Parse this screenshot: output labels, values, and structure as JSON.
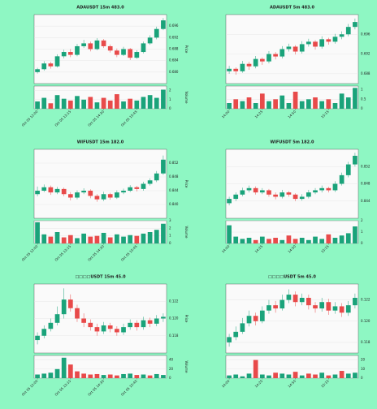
{
  "chart_data": [
    {
      "type": "candlestick",
      "title": "ADAUSDT 15m 483.0",
      "ylabel": "Price",
      "y2label": "Volume",
      "up_color": "#1aa37a",
      "down_color": "#e84a4a",
      "grid": true,
      "categories": [
        "Oct 05 12:00",
        null,
        null,
        null,
        null,
        "Oct 05 13:15",
        null,
        null,
        null,
        null,
        "Oct 05 14:30",
        null,
        null,
        null,
        null,
        "Oct 05 15:45",
        null,
        null,
        null,
        null
      ],
      "ohlc": [
        [
          0.68,
          0.6815,
          0.6795,
          0.681
        ],
        [
          0.681,
          0.6838,
          0.6805,
          0.683
        ],
        [
          0.683,
          0.6836,
          0.6812,
          0.682
        ],
        [
          0.682,
          0.6862,
          0.6816,
          0.6855
        ],
        [
          0.6855,
          0.6878,
          0.6848,
          0.687
        ],
        [
          0.687,
          0.688,
          0.6852,
          0.686
        ],
        [
          0.686,
          0.6898,
          0.6855,
          0.689
        ],
        [
          0.689,
          0.6912,
          0.6884,
          0.69
        ],
        [
          0.69,
          0.6906,
          0.6872,
          0.688
        ],
        [
          0.688,
          0.6918,
          0.6876,
          0.691
        ],
        [
          0.691,
          0.6915,
          0.6884,
          0.689
        ],
        [
          0.689,
          0.6896,
          0.6868,
          0.6875
        ],
        [
          0.6875,
          0.6882,
          0.6852,
          0.686
        ],
        [
          0.686,
          0.6888,
          0.6856,
          0.688
        ],
        [
          0.688,
          0.6884,
          0.6842,
          0.685
        ],
        [
          0.685,
          0.6876,
          0.6846,
          0.687
        ],
        [
          0.687,
          0.6906,
          0.6865,
          0.69
        ],
        [
          0.69,
          0.6928,
          0.6895,
          0.692
        ],
        [
          0.692,
          0.6958,
          0.6914,
          0.695
        ],
        [
          0.695,
          0.6988,
          0.6946,
          0.698
        ]
      ],
      "volume": [
        0.8,
        1.2,
        0.6,
        1.5,
        1.1,
        0.9,
        1.4,
        1.0,
        1.3,
        0.7,
        1.2,
        0.9,
        1.6,
        0.8,
        1.1,
        0.9,
        1.3,
        1.5,
        1.2,
        2.1
      ],
      "ylim": [
        0.676,
        0.7
      ],
      "yticks": [
        {
          "value": 0.68,
          "label": "0.680"
        },
        0.684,
        0.688,
        0.692,
        0.696
      ],
      "y2lim": [
        0,
        2.5
      ],
      "y2ticks": [
        0,
        1,
        2
      ]
    },
    {
      "type": "candlestick",
      "title": "ADAUSDT 5m 483.0",
      "ylabel": "Price",
      "y2label": "Volume",
      "up_color": "#1aa37a",
      "down_color": "#e84a4a",
      "grid": true,
      "categories": [
        "14:00",
        null,
        null,
        null,
        null,
        "14:25",
        null,
        null,
        null,
        null,
        "14:50",
        null,
        null,
        null,
        null,
        "15:15",
        null,
        null,
        null,
        null
      ],
      "ohlc": [
        [
          0.6885,
          0.6896,
          0.688,
          0.689
        ],
        [
          0.689,
          0.6893,
          0.6878,
          0.6885
        ],
        [
          0.6885,
          0.6906,
          0.6882,
          0.69
        ],
        [
          0.69,
          0.6904,
          0.6888,
          0.6895
        ],
        [
          0.6895,
          0.6916,
          0.6891,
          0.691
        ],
        [
          0.691,
          0.6913,
          0.6898,
          0.6905
        ],
        [
          0.6905,
          0.6926,
          0.6901,
          0.692
        ],
        [
          0.692,
          0.6924,
          0.6909,
          0.6915
        ],
        [
          0.6915,
          0.6936,
          0.6911,
          0.693
        ],
        [
          0.693,
          0.6941,
          0.6925,
          0.6935
        ],
        [
          0.6935,
          0.6938,
          0.6919,
          0.6925
        ],
        [
          0.6925,
          0.6946,
          0.6921,
          0.694
        ],
        [
          0.694,
          0.6951,
          0.6935,
          0.6945
        ],
        [
          0.6945,
          0.6948,
          0.6929,
          0.6935
        ],
        [
          0.6935,
          0.6956,
          0.6931,
          0.695
        ],
        [
          0.695,
          0.6953,
          0.6939,
          0.6945
        ],
        [
          0.6945,
          0.6961,
          0.6941,
          0.6955
        ],
        [
          0.6955,
          0.6966,
          0.695,
          0.696
        ],
        [
          0.696,
          0.6981,
          0.6956,
          0.6975
        ],
        [
          0.6975,
          0.6992,
          0.697,
          0.6985
        ]
      ],
      "volume": [
        0.3,
        0.5,
        0.4,
        0.6,
        0.3,
        0.8,
        0.4,
        0.5,
        0.7,
        0.3,
        0.9,
        0.4,
        0.5,
        0.6,
        0.4,
        0.5,
        0.3,
        0.8,
        0.6,
        1.1
      ],
      "ylim": [
        0.686,
        0.7
      ],
      "yticks": [
        0.688,
        0.692,
        0.696
      ],
      "y2lim": [
        0,
        1.2
      ],
      "y2ticks": [
        0,
        0.5,
        1
      ]
    },
    {
      "type": "candlestick",
      "title": "WIFUSDT 15m 182.0",
      "ylabel": "Price",
      "y2label": "Volume",
      "up_color": "#1aa37a",
      "down_color": "#e84a4a",
      "grid": true,
      "categories": [
        "Oct 05 12:00",
        null,
        null,
        null,
        null,
        "Oct 05 13:15",
        null,
        null,
        null,
        null,
        "Oct 05 14:30",
        null,
        null,
        null,
        null,
        "Oct 05 15:45",
        null,
        null,
        null,
        null
      ],
      "ohlc": [
        [
          0.843,
          0.8452,
          0.8424,
          0.844
        ],
        [
          0.844,
          0.8458,
          0.8436,
          0.845
        ],
        [
          0.845,
          0.8455,
          0.8428,
          0.8435
        ],
        [
          0.8435,
          0.8451,
          0.843,
          0.8445
        ],
        [
          0.8445,
          0.8449,
          0.8424,
          0.843
        ],
        [
          0.843,
          0.8436,
          0.8412,
          0.842
        ],
        [
          0.842,
          0.8441,
          0.8415,
          0.8435
        ],
        [
          0.8435,
          0.8447,
          0.843,
          0.844
        ],
        [
          0.844,
          0.8444,
          0.8418,
          0.8425
        ],
        [
          0.8425,
          0.843,
          0.8408,
          0.8415
        ],
        [
          0.8415,
          0.8437,
          0.841,
          0.843
        ],
        [
          0.843,
          0.8434,
          0.8414,
          0.842
        ],
        [
          0.842,
          0.8441,
          0.8416,
          0.8435
        ],
        [
          0.8435,
          0.8446,
          0.843,
          0.844
        ],
        [
          0.844,
          0.8456,
          0.8436,
          0.845
        ],
        [
          0.845,
          0.8454,
          0.8438,
          0.8445
        ],
        [
          0.8445,
          0.8466,
          0.844,
          0.846
        ],
        [
          0.846,
          0.8476,
          0.8455,
          0.847
        ],
        [
          0.847,
          0.8497,
          0.8465,
          0.849
        ],
        [
          0.849,
          0.8542,
          0.8486,
          0.853
        ]
      ],
      "volume": [
        2.8,
        1.2,
        0.9,
        1.5,
        0.8,
        1.1,
        0.7,
        1.3,
        0.9,
        1.0,
        1.4,
        0.8,
        1.2,
        0.9,
        1.1,
        1.0,
        1.3,
        1.5,
        1.8,
        2.6
      ],
      "ylim": [
        0.836,
        0.856
      ],
      "yticks": [
        {
          "value": 0.84,
          "label": "0.840"
        },
        0.844,
        0.848,
        0.852
      ],
      "y2lim": [
        0,
        3
      ],
      "y2ticks": [
        0,
        1,
        2,
        3
      ]
    },
    {
      "type": "candlestick",
      "title": "WIFUSDT 5m 182.0",
      "ylabel": "Price",
      "y2label": "Volume",
      "up_color": "#1aa37a",
      "down_color": "#e84a4a",
      "grid": true,
      "categories": [
        "14:00",
        null,
        null,
        null,
        null,
        "14:25",
        null,
        null,
        null,
        null,
        "14:50",
        null,
        null,
        null,
        null,
        "15:15",
        null,
        null,
        null,
        null
      ],
      "ohlc": [
        [
          0.8435,
          0.845,
          0.843,
          0.8445
        ],
        [
          0.8445,
          0.846,
          0.844,
          0.8455
        ],
        [
          0.8455,
          0.8471,
          0.8451,
          0.8465
        ],
        [
          0.8465,
          0.8476,
          0.846,
          0.847
        ],
        [
          0.847,
          0.8474,
          0.8455,
          0.846
        ],
        [
          0.846,
          0.847,
          0.8456,
          0.8465
        ],
        [
          0.8465,
          0.8468,
          0.845,
          0.8455
        ],
        [
          0.8455,
          0.846,
          0.8444,
          0.845
        ],
        [
          0.845,
          0.8466,
          0.8446,
          0.846
        ],
        [
          0.846,
          0.8463,
          0.845,
          0.8455
        ],
        [
          0.8455,
          0.8458,
          0.844,
          0.8445
        ],
        [
          0.8445,
          0.8456,
          0.8441,
          0.845
        ],
        [
          0.845,
          0.8466,
          0.8446,
          0.846
        ],
        [
          0.846,
          0.847,
          0.8456,
          0.8465
        ],
        [
          0.8465,
          0.8476,
          0.846,
          0.847
        ],
        [
          0.847,
          0.8473,
          0.846,
          0.8465
        ],
        [
          0.8465,
          0.8486,
          0.8461,
          0.848
        ],
        [
          0.848,
          0.8506,
          0.8476,
          0.85
        ],
        [
          0.85,
          0.8531,
          0.8495,
          0.8525
        ],
        [
          0.8525,
          0.8552,
          0.852,
          0.8545
        ]
      ],
      "volume": [
        1.6,
        0.6,
        0.4,
        0.5,
        0.3,
        0.6,
        0.4,
        0.5,
        0.3,
        0.7,
        0.4,
        0.5,
        0.3,
        0.6,
        0.4,
        0.8,
        0.5,
        0.7,
        0.9,
        1.5
      ],
      "ylim": [
        0.84,
        0.856
      ],
      "yticks": [
        0.844,
        0.848,
        0.852
      ],
      "y2lim": [
        0,
        2
      ],
      "y2ticks": [
        0,
        1,
        2
      ]
    },
    {
      "type": "candlestick",
      "title": "□□□□USDT 15m 45.0",
      "ylabel": "Price",
      "y2label": "Volume",
      "up_color": "#1aa37a",
      "down_color": "#e84a4a",
      "grid": true,
      "categories": [
        "Oct 05 12:00",
        null,
        null,
        null,
        null,
        "Oct 05 13:15",
        null,
        null,
        null,
        null,
        "Oct 05 14:30",
        null,
        null,
        null,
        null,
        "Oct 05 15:45",
        null,
        null,
        null,
        null
      ],
      "ohlc": [
        [
          0.1175,
          0.1184,
          0.117,
          0.118
        ],
        [
          0.118,
          0.1192,
          0.1177,
          0.1188
        ],
        [
          0.1188,
          0.12,
          0.1185,
          0.1195
        ],
        [
          0.1195,
          0.1214,
          0.1192,
          0.1205
        ],
        [
          0.1205,
          0.1235,
          0.12,
          0.1222
        ],
        [
          0.1222,
          0.1228,
          0.1208,
          0.1212
        ],
        [
          0.1212,
          0.1216,
          0.1196,
          0.12
        ],
        [
          0.12,
          0.1206,
          0.119,
          0.1195
        ],
        [
          0.1195,
          0.1199,
          0.1186,
          0.119
        ],
        [
          0.119,
          0.1194,
          0.118,
          0.1185
        ],
        [
          0.1185,
          0.1196,
          0.1182,
          0.1192
        ],
        [
          0.1192,
          0.1195,
          0.1184,
          0.1188
        ],
        [
          0.1188,
          0.1191,
          0.118,
          0.1184
        ],
        [
          0.1184,
          0.1194,
          0.1181,
          0.119
        ],
        [
          0.119,
          0.1199,
          0.1187,
          0.1195
        ],
        [
          0.1195,
          0.1198,
          0.1186,
          0.119
        ],
        [
          0.119,
          0.1202,
          0.1187,
          0.1198
        ],
        [
          0.1198,
          0.1201,
          0.119,
          0.1194
        ],
        [
          0.1194,
          0.1204,
          0.1191,
          0.12
        ],
        [
          0.12,
          0.1206,
          0.1196,
          0.1202
        ]
      ],
      "volume": [
        8,
        10,
        12,
        20,
        45,
        30,
        15,
        10,
        8,
        9,
        7,
        8,
        6,
        9,
        10,
        7,
        8,
        6,
        9,
        7
      ],
      "ylim": [
        0.116,
        0.124
      ],
      "yticks": [
        0.118,
        {
          "value": 0.12,
          "label": "0.120"
        },
        0.122
      ],
      "y2lim": [
        0,
        50
      ],
      "y2ticks": [
        0,
        20,
        40
      ]
    },
    {
      "type": "candlestick",
      "title": "□□□□USDT 5m 45.0",
      "ylabel": "Price",
      "y2label": "Volume",
      "up_color": "#1aa37a",
      "down_color": "#e84a4a",
      "grid": true,
      "categories": [
        "14:00",
        null,
        null,
        null,
        null,
        "14:25",
        null,
        null,
        null,
        null,
        "14:50",
        null,
        null,
        null,
        null,
        "15:15",
        null,
        null,
        null,
        null
      ],
      "ohlc": [
        [
          0.118,
          0.1188,
          0.1176,
          0.1185
        ],
        [
          0.1185,
          0.1195,
          0.1182,
          0.119
        ],
        [
          0.119,
          0.1203,
          0.1188,
          0.1198
        ],
        [
          0.1198,
          0.121,
          0.1195,
          0.1205
        ],
        [
          0.1205,
          0.1208,
          0.1196,
          0.12
        ],
        [
          0.12,
          0.1214,
          0.1198,
          0.121
        ],
        [
          0.121,
          0.122,
          0.1207,
          0.1215
        ],
        [
          0.1215,
          0.1219,
          0.1208,
          0.1212
        ],
        [
          0.1212,
          0.1225,
          0.121,
          0.122
        ],
        [
          0.122,
          0.123,
          0.1217,
          0.1225
        ],
        [
          0.1225,
          0.1228,
          0.1214,
          0.1218
        ],
        [
          0.1218,
          0.1226,
          0.1215,
          0.1222
        ],
        [
          0.1222,
          0.1225,
          0.1211,
          0.1215
        ],
        [
          0.1215,
          0.1218,
          0.1208,
          0.1212
        ],
        [
          0.1212,
          0.1222,
          0.1209,
          0.1218
        ],
        [
          0.1218,
          0.1221,
          0.1206,
          0.121
        ],
        [
          0.121,
          0.1218,
          0.1207,
          0.1214
        ],
        [
          0.1214,
          0.1217,
          0.1204,
          0.1208
        ],
        [
          0.1208,
          0.1219,
          0.1205,
          0.1215
        ],
        [
          0.1215,
          0.1226,
          0.1212,
          0.1222
        ]
      ],
      "volume": [
        3,
        4,
        2,
        5,
        20,
        4,
        3,
        6,
        5,
        4,
        7,
        3,
        5,
        4,
        6,
        3,
        4,
        8,
        5,
        6
      ],
      "ylim": [
        0.117,
        0.1235
      ],
      "yticks": [
        0.118,
        {
          "value": 0.12,
          "label": "0.120"
        },
        0.122
      ],
      "y2lim": [
        0,
        25
      ],
      "y2ticks": [
        0,
        10,
        20
      ]
    }
  ]
}
